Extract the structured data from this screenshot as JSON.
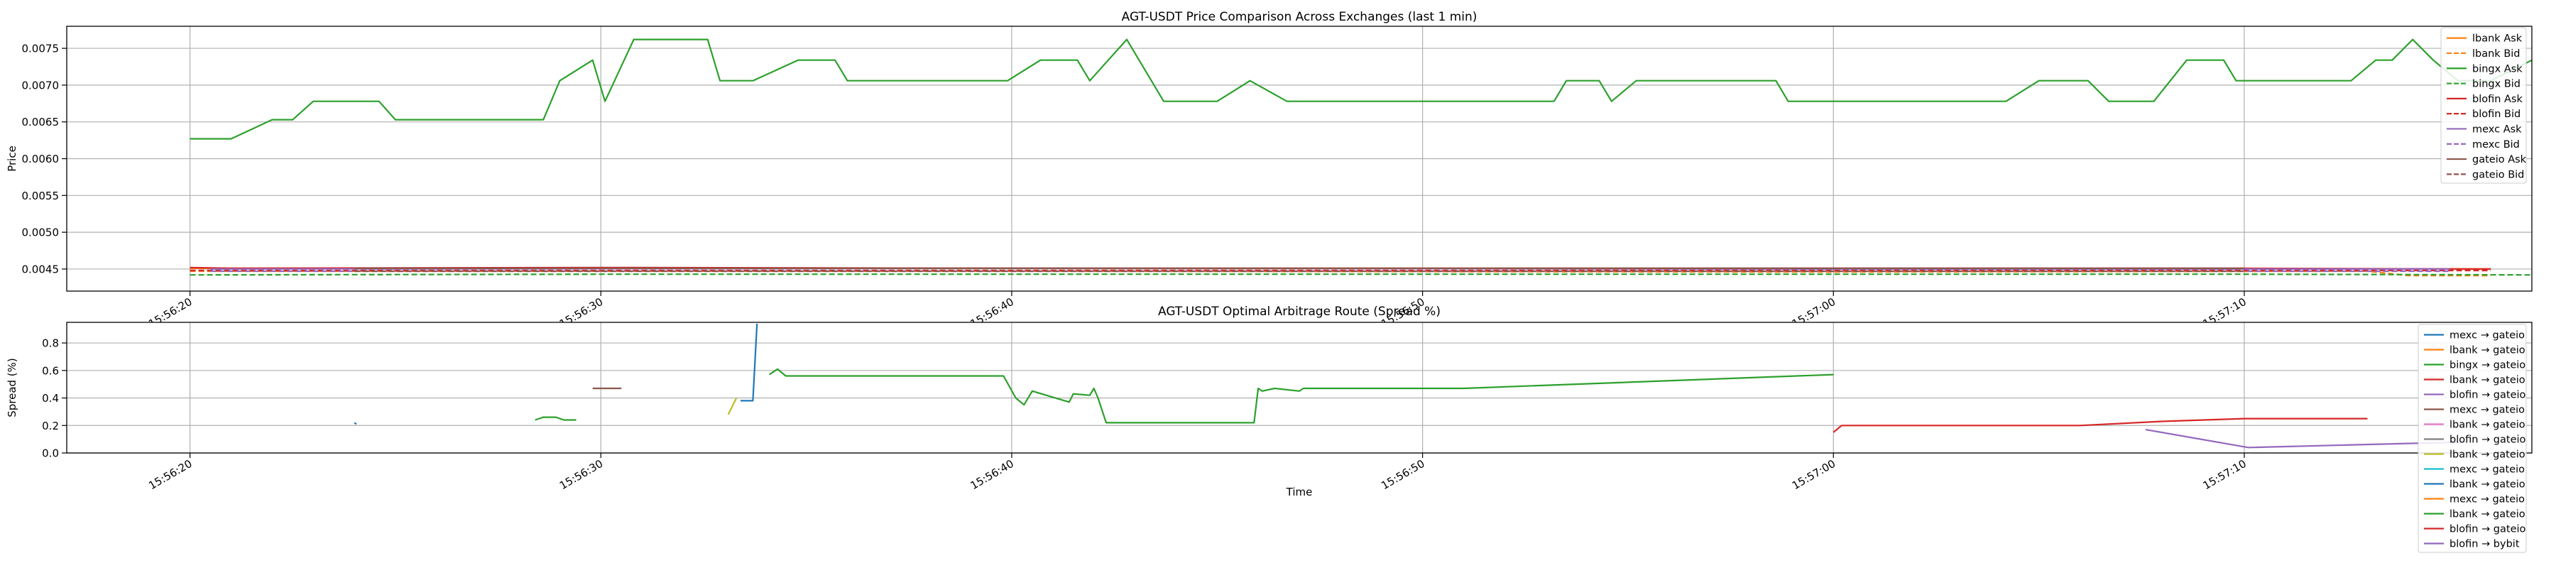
{
  "chart_data": [
    {
      "type": "line",
      "title": "AGT-USDT Price Comparison Across Exchanges (last 1 min)",
      "xlabel": "",
      "ylabel": "Price",
      "x_axis": "time",
      "xlim": [
        "15:56:17",
        "15:57:17"
      ],
      "xticks": [
        "15:56:20",
        "15:56:30",
        "15:56:40",
        "15:56:50",
        "15:57:00",
        "15:57:10"
      ],
      "ylim": [
        0.0042,
        0.0078
      ],
      "yticks": [
        "0.0045",
        "0.0050",
        "0.0055",
        "0.0060",
        "0.0065",
        "0.0070",
        "0.0075"
      ],
      "grid": true,
      "legend_position": "upper right",
      "series": [
        {
          "name": "lbank Ask",
          "color": "#ff7f0e",
          "dash": "solid",
          "points": [
            [
              "15:56:20",
              0.00451
            ],
            [
              "15:56:40",
              0.00451
            ],
            [
              "15:57:00",
              0.0045
            ],
            [
              "15:57:16",
              0.0045
            ]
          ]
        },
        {
          "name": "lbank Bid",
          "color": "#ff7f0e",
          "dash": "dashed",
          "points": [
            [
              "15:56:20",
              0.00447
            ],
            [
              "15:56:40",
              0.00447
            ],
            [
              "15:57:00",
              0.00446
            ],
            [
              "15:57:13",
              0.00447
            ],
            [
              "15:57:14",
              0.00441
            ],
            [
              "15:57:16",
              0.00441
            ]
          ]
        },
        {
          "name": "bingx Ask",
          "color": "#2ca02c",
          "dash": "solid",
          "points": [
            [
              "15:56:20",
              0.00627
            ],
            [
              "15:56:21",
              0.00627
            ],
            [
              "15:56:21.5",
              0.0064
            ],
            [
              "15:56:22",
              0.00653
            ],
            [
              "15:56:22.5",
              0.00653
            ],
            [
              "15:56:23",
              0.00678
            ],
            [
              "15:56:24.6",
              0.00678
            ],
            [
              "15:56:25",
              0.00653
            ],
            [
              "15:56:28.6",
              0.00653
            ],
            [
              "15:56:29",
              0.00706
            ],
            [
              "15:56:29.8",
              0.00734
            ],
            [
              "15:56:30.1",
              0.00678
            ],
            [
              "15:56:30.8",
              0.00762
            ],
            [
              "15:56:32.6",
              0.00762
            ],
            [
              "15:56:32.9",
              0.00706
            ],
            [
              "15:56:33.7",
              0.00706
            ],
            [
              "15:56:34.8",
              0.00734
            ],
            [
              "15:56:35.7",
              0.00734
            ],
            [
              "15:56:36",
              0.00706
            ],
            [
              "15:56:39.9",
              0.00706
            ],
            [
              "15:56:40.7",
              0.00734
            ],
            [
              "15:56:41.6",
              0.00734
            ],
            [
              "15:56:41.9",
              0.00706
            ],
            [
              "15:56:42.8",
              0.00762
            ],
            [
              "15:56:43.7",
              0.00678
            ],
            [
              "15:56:45",
              0.00678
            ],
            [
              "15:56:45.8",
              0.00706
            ],
            [
              "15:56:46.7",
              0.00678
            ],
            [
              "15:56:53.2",
              0.00678
            ],
            [
              "15:56:53.5",
              0.00706
            ],
            [
              "15:56:54.3",
              0.00706
            ],
            [
              "15:56:54.6",
              0.00678
            ],
            [
              "15:56:55.2",
              0.00706
            ],
            [
              "15:56:58.6",
              0.00706
            ],
            [
              "15:56:58.9",
              0.00678
            ],
            [
              "15:57:04.2",
              0.00678
            ],
            [
              "15:57:05",
              0.00706
            ],
            [
              "15:57:06.2",
              0.00706
            ],
            [
              "15:57:06.7",
              0.00678
            ],
            [
              "15:57:07.8",
              0.00678
            ],
            [
              "15:57:08.6",
              0.00734
            ],
            [
              "15:57:09.5",
              0.00734
            ],
            [
              "15:57:09.8",
              0.00706
            ],
            [
              "15:57:12.6",
              0.00706
            ],
            [
              "15:57:13.2",
              0.00734
            ],
            [
              "15:57:13.6",
              0.00734
            ],
            [
              "15:57:14.1",
              0.00762
            ],
            [
              "15:57:14.6",
              0.00734
            ],
            [
              "15:57:15.2",
              0.00706
            ],
            [
              "15:57:16",
              0.00706
            ],
            [
              "15:57:17",
              0.00734
            ]
          ]
        },
        {
          "name": "bingx Bid",
          "color": "#2ca02c",
          "dash": "dashed",
          "points": [
            [
              "15:56:20",
              0.00442
            ],
            [
              "15:56:30",
              0.00443
            ],
            [
              "15:56:40",
              0.00443
            ],
            [
              "15:56:50",
              0.00443
            ],
            [
              "15:57:00",
              0.00443
            ],
            [
              "15:57:10",
              0.00443
            ],
            [
              "15:57:17",
              0.00442
            ]
          ]
        },
        {
          "name": "blofin Ask",
          "color": "#d62728",
          "dash": "solid",
          "points": [
            [
              "15:56:20",
              0.00452
            ],
            [
              "15:56:21",
              0.00451
            ],
            [
              "15:56:30",
              0.00452
            ],
            [
              "15:56:40",
              0.00451
            ],
            [
              "15:56:50",
              0.00451
            ],
            [
              "15:57:00",
              0.00451
            ],
            [
              "15:57:10",
              0.00451
            ],
            [
              "15:57:16",
              0.0045
            ]
          ]
        },
        {
          "name": "blofin Bid",
          "color": "#d62728",
          "dash": "dashed",
          "points": [
            [
              "15:56:20",
              0.00448
            ],
            [
              "15:56:40",
              0.00448
            ],
            [
              "15:57:00",
              0.00448
            ],
            [
              "15:57:16",
              0.00448
            ]
          ]
        },
        {
          "name": "mexc Ask",
          "color": "#9467bd",
          "dash": "solid",
          "points": [
            [
              "15:56:20.5",
              0.0045
            ],
            [
              "15:56:40",
              0.00451
            ],
            [
              "15:57:00",
              0.0045
            ],
            [
              "15:57:15",
              0.0045
            ]
          ]
        },
        {
          "name": "mexc Bid",
          "color": "#9467bd",
          "dash": "dashed",
          "points": [
            [
              "15:56:20.5",
              0.00447
            ],
            [
              "15:56:40",
              0.00447
            ],
            [
              "15:57:00",
              0.00447
            ],
            [
              "15:57:15",
              0.00447
            ]
          ]
        },
        {
          "name": "gateio Ask",
          "color": "#8c564b",
          "dash": "solid",
          "points": [
            [
              "15:56:24",
              0.00451
            ],
            [
              "15:56:40",
              0.00451
            ],
            [
              "15:57:00",
              0.00451
            ],
            [
              "15:57:10",
              0.00451
            ]
          ]
        },
        {
          "name": "gateio Bid",
          "color": "#8c564b",
          "dash": "dashed",
          "points": [
            [
              "15:56:24",
              0.00447
            ],
            [
              "15:56:40",
              0.00447
            ],
            [
              "15:57:00",
              0.00447
            ],
            [
              "15:57:10",
              0.00447
            ]
          ]
        }
      ]
    },
    {
      "type": "line",
      "title": "AGT-USDT Optimal Arbitrage Route (Spread %)",
      "xlabel": "Time",
      "ylabel": "Spread (%)",
      "x_axis": "time",
      "xlim": [
        "15:56:17",
        "15:57:17"
      ],
      "xticks": [
        "15:56:20",
        "15:56:30",
        "15:56:40",
        "15:56:50",
        "15:57:00",
        "15:57:10"
      ],
      "ylim": [
        0.0,
        0.95
      ],
      "yticks": [
        "0.0",
        "0.2",
        "0.4",
        "0.6",
        "0.8"
      ],
      "grid": true,
      "legend_position": "upper right",
      "series": [
        {
          "name": "mexc → gateio",
          "color": "#1f77b4",
          "points": [
            [
              "15:56:24",
              0.22
            ],
            [
              "15:56:24.05",
              0.21
            ]
          ]
        },
        {
          "name": "lbank → gateio",
          "color": "#ff7f0e",
          "points": []
        },
        {
          "name": "bingx → gateio",
          "color": "#2ca02c",
          "points": [
            [
              "15:56:28.4",
              0.24
            ],
            [
              "15:56:28.6",
              0.26
            ],
            [
              "15:56:28.9",
              0.26
            ],
            [
              "15:56:29.1",
              0.24
            ],
            [
              "15:56:29.4",
              0.24
            ]
          ]
        },
        {
          "name": "lbank → gateio",
          "color": "#d62728",
          "points": []
        },
        {
          "name": "blofin → gateio",
          "color": "#9467bd",
          "points": []
        },
        {
          "name": "mexc → gateio",
          "color": "#8c564b",
          "points": [
            [
              "15:56:29.8",
              0.47
            ],
            [
              "15:56:30.5",
              0.47
            ]
          ]
        },
        {
          "name": "lbank → gateio",
          "color": "#e377c2",
          "points": []
        },
        {
          "name": "blofin → gateio",
          "color": "#7f7f7f",
          "points": []
        },
        {
          "name": "lbank → gateio",
          "color": "#bcbd22",
          "points": [
            [
              "15:56:33.1",
              0.28
            ],
            [
              "15:56:33.3",
              0.4
            ]
          ]
        },
        {
          "name": "mexc → gateio",
          "color": "#17becf",
          "points": []
        },
        {
          "name": "lbank → gateio",
          "color": "#1f77b4",
          "points": [
            [
              "15:56:33.4",
              0.38
            ],
            [
              "15:56:33.7",
              0.38
            ],
            [
              "15:56:33.8",
              0.94
            ]
          ]
        },
        {
          "name": "mexc → gateio",
          "color": "#ff7f0e",
          "points": []
        },
        {
          "name": "lbank → gateio",
          "color": "#2ca02c",
          "points": [
            [
              "15:56:34.1",
              0.57
            ],
            [
              "15:56:34.3",
              0.61
            ],
            [
              "15:56:34.5",
              0.56
            ],
            [
              "15:56:39.8",
              0.56
            ],
            [
              "15:56:40.1",
              0.4
            ],
            [
              "15:56:40.3",
              0.35
            ],
            [
              "15:56:40.5",
              0.45
            ],
            [
              "15:56:41.4",
              0.37
            ],
            [
              "15:56:41.5",
              0.43
            ],
            [
              "15:56:41.9",
              0.42
            ],
            [
              "15:56:42",
              0.47
            ],
            [
              "15:56:42.1",
              0.4
            ],
            [
              "15:56:42.3",
              0.22
            ],
            [
              "15:56:45.9",
              0.22
            ],
            [
              "15:56:46",
              0.47
            ],
            [
              "15:56:46.1",
              0.45
            ],
            [
              "15:56:46.4",
              0.47
            ],
            [
              "15:56:47",
              0.45
            ],
            [
              "15:56:47.1",
              0.47
            ],
            [
              "15:56:51",
              0.47
            ],
            [
              "15:57:00",
              0.57
            ]
          ]
        },
        {
          "name": "blofin → gateio",
          "color": "#d62728",
          "points": [
            [
              "15:57:00",
              0.15
            ],
            [
              "15:57:00.2",
              0.2
            ],
            [
              "15:57:06",
              0.2
            ],
            [
              "15:57:08",
              0.23
            ],
            [
              "15:57:10",
              0.25
            ],
            [
              "15:57:13",
              0.25
            ]
          ]
        },
        {
          "name": "blofin → bybit",
          "color": "#9467bd",
          "points": [
            [
              "15:57:07.6",
              0.17
            ],
            [
              "15:57:10.1",
              0.04
            ],
            [
              "15:57:15.4",
              0.08
            ]
          ]
        }
      ]
    }
  ]
}
